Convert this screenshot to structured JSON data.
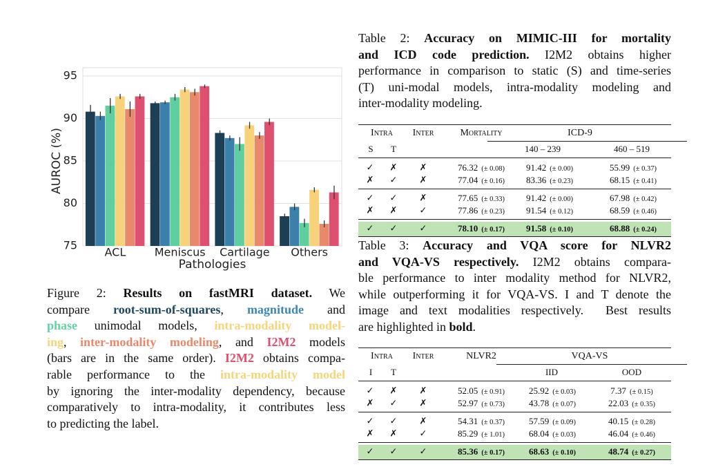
{
  "figure": {
    "chart_data": {
      "type": "bar",
      "ylabel": "AUROC (%)",
      "xlabel": "Pathologies",
      "categories": [
        "ACL",
        "Meniscus",
        "Cartilage",
        "Others"
      ],
      "series": [
        {
          "color": "#1d3f55",
          "values": [
            90.8,
            91.8,
            88.3,
            78.5
          ],
          "errors": [
            0.8,
            0.2,
            0.3,
            0.3
          ]
        },
        {
          "color": "#3b80ab",
          "values": [
            90.3,
            91.9,
            87.7,
            79.6
          ],
          "errors": [
            0.5,
            0.2,
            0.3,
            0.4
          ]
        },
        {
          "color": "#5fcf9f",
          "values": [
            91.5,
            92.5,
            87.0,
            77.7
          ],
          "errors": [
            0.9,
            0.4,
            0.8,
            0.5
          ]
        },
        {
          "color": "#f7d27a",
          "values": [
            92.6,
            93.4,
            89.2,
            81.6
          ],
          "errors": [
            0.3,
            0.3,
            0.4,
            0.3
          ]
        },
        {
          "color": "#e8896b",
          "values": [
            91.1,
            93.1,
            88.0,
            77.6
          ],
          "errors": [
            0.9,
            0.4,
            0.4,
            0.4
          ]
        },
        {
          "color": "#df5070",
          "values": [
            92.6,
            93.8,
            89.6,
            81.3
          ],
          "errors": [
            0.3,
            0.2,
            0.4,
            0.8
          ]
        }
      ],
      "ylim": [
        75,
        95
      ],
      "yticks": [
        75,
        80,
        85,
        90,
        95
      ],
      "grid": true
    },
    "caption": [
      [
        "Figure 2: ",
        {
          "text": "Results on fastMRI dataset.",
          "style": "bold"
        },
        " We"
      ],
      [
        "compare ",
        {
          "text": "root-sum-of-squares",
          "style": "navy"
        },
        ", ",
        {
          "text": "magnitude",
          "style": "blue"
        },
        " and"
      ],
      [
        {
          "text": "phase",
          "style": "green"
        },
        " unimodal models, ",
        {
          "text": "intra-modality model-",
          "style": "yellow"
        }
      ],
      [
        {
          "text": "ing",
          "style": "yellow"
        },
        ", ",
        {
          "text": "inter-modality modeling",
          "style": "orange"
        },
        ", and ",
        {
          "text": "I2M2",
          "style": "pink"
        },
        " models"
      ],
      [
        "(bars are in the same order). ",
        {
          "text": "I2M2",
          "style": "pink"
        },
        " obtains compa-"
      ],
      [
        "rable performance to the ",
        {
          "text": "intra-modality model",
          "style": "yellow"
        }
      ],
      [
        "by ignoring the inter-modality dependency, because"
      ],
      [
        "comparatively to intra-modality, it contributes less"
      ],
      [
        "to predicting the label."
      ]
    ]
  },
  "table2": {
    "caption": [
      [
        "Table 2: ",
        {
          "text": "Accuracy on MIMIC-III for mortality",
          "style": "bold"
        }
      ],
      [
        {
          "text": "and ICD code prediction.",
          "style": "bold"
        },
        " I2M2 obtains higher"
      ],
      [
        "performance in comparison to static (S) and time-series"
      ],
      [
        "(T) uni-modal models, intra-modality modeling and"
      ],
      [
        "inter-modality modeling."
      ]
    ],
    "columns": [
      "Intra",
      "Inter",
      "Mortality",
      "ICD-9"
    ],
    "subcolumns": [
      "S",
      "T",
      "140 – 239",
      "460 – 519"
    ],
    "groups": [
      [
        [
          "✓",
          "✗",
          "✗",
          "76.32",
          "(± 0.08)",
          "91.42",
          "(± 0.00)",
          "55.99",
          "(± 0.37)"
        ],
        [
          "✗",
          "✓",
          "✗",
          "77.04",
          "(± 0.16)",
          "83.36",
          "(± 0.23)",
          "68.15",
          "(± 0.41)"
        ]
      ],
      [
        [
          "✓",
          "✓",
          "✗",
          "77.65",
          "(± 0.33)",
          "91.42",
          "(± 0.00)",
          "67.98",
          "(± 0.42)"
        ],
        [
          "✗",
          "✗",
          "✓",
          "77.86",
          "(± 0.23)",
          "91.54",
          "(± 0.12)",
          "68.59",
          "(± 0.46)"
        ]
      ]
    ],
    "best": [
      "✓",
      "✓",
      "✓",
      "78.10",
      "(± 0.17)",
      "91.58",
      "(± 0.10)",
      "68.88",
      "(± 0.24)"
    ]
  },
  "table3": {
    "caption": [
      [
        "Table 3: ",
        {
          "text": "Accuracy and VQA score for NLVR2",
          "style": "bold"
        }
      ],
      [
        {
          "text": "and VQA-VS respectively.",
          "style": "bold"
        },
        " I2M2 obtains compara-"
      ],
      [
        "ble performance to inter modality method for NLVR2,"
      ],
      [
        "while outperforming it for VQA-VS. I and T denote the"
      ],
      [
        "image and text modalities respectively.  Best results"
      ],
      [
        "are highlighted in ",
        {
          "text": "bold",
          "style": "bold"
        },
        "."
      ]
    ],
    "columns": [
      "Intra",
      "Inter",
      "NLVR2",
      "VQA-VS"
    ],
    "subcolumns": [
      "I",
      "T",
      "IID",
      "OOD"
    ],
    "groups": [
      [
        [
          "✓",
          "✗",
          "✗",
          "52.05",
          "(± 0.91)",
          "25.92",
          "(± 0.03)",
          "7.37",
          "(± 0.15)"
        ],
        [
          "✗",
          "✓",
          "✗",
          "52.97",
          "(± 0.73)",
          "43.78",
          "(± 0.07)",
          "22.03",
          "(± 0.35)"
        ]
      ],
      [
        [
          "✓",
          "✓",
          "✗",
          "54.31",
          "(± 0.37)",
          "57.59",
          "(± 0.09)",
          "40.15",
          "(± 0.28)"
        ],
        [
          "✗",
          "✗",
          "✓",
          "85.29",
          "(± 1.01)",
          "68.04",
          "(± 0.03)",
          "46.04",
          "(± 0.46)"
        ]
      ]
    ],
    "best": [
      "✓",
      "✓",
      "✓",
      "85.36",
      "(± 0.17)",
      "68.63",
      "(± 0.10)",
      "48.74",
      "(± 0.27)"
    ]
  }
}
